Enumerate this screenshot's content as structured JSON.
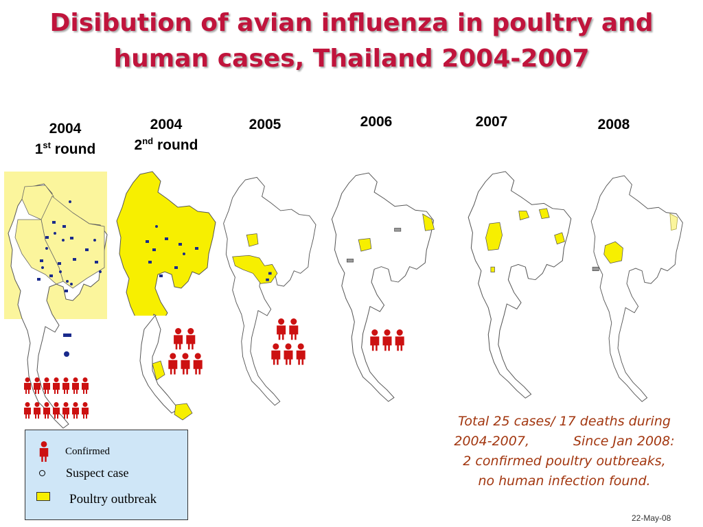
{
  "title": {
    "line1": "Disibution of avian influenza in poultry and",
    "line2": "human cases, Thailand 2004-2007"
  },
  "panels": [
    {
      "year": "2004",
      "round_num": "1",
      "round_sup": "st",
      "round_word": "round"
    },
    {
      "year": "2004",
      "round_num": "2",
      "round_sup": "nd",
      "round_word": "round"
    },
    {
      "year": "2005"
    },
    {
      "year": "2006"
    },
    {
      "year": "2007"
    },
    {
      "year": "2008"
    }
  ],
  "legend": {
    "confirmed": "Confirmed",
    "suspect": "Suspect case",
    "outbreak": "Poultry outbreak"
  },
  "summary": {
    "line1": "Total 25 cases/ 17 deaths during",
    "line2a": "2004-2007,",
    "line2b": "Since Jan 2008:",
    "line3": "2 confirmed poultry outbreaks,",
    "line4": "no human infection found."
  },
  "footer": "22-May-08",
  "colors": {
    "title": "#c0143c",
    "outbreak_yellow": "#f7ef00",
    "light_yellow": "#fbf59c",
    "figure_red": "#cc1111",
    "legend_bg": "#cfe6f7",
    "summary_text": "#a2360f"
  }
}
